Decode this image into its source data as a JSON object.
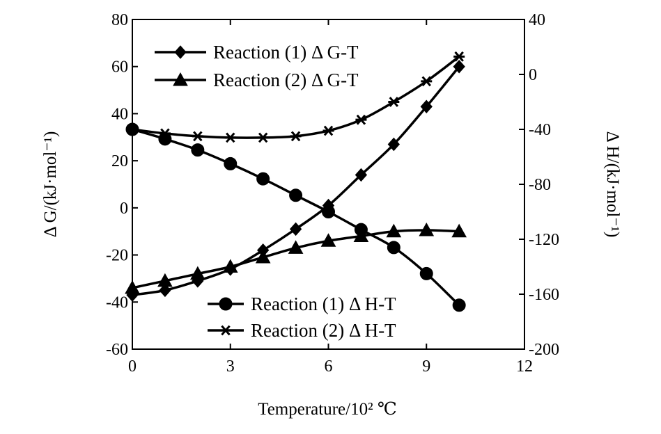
{
  "chart_data": {
    "type": "line",
    "xlabel": "Temperature/10² ℃",
    "ylabel_left": "Δ G/(kJ·mol⁻¹)",
    "ylabel_right": "Δ H/(kJ·mol⁻¹)",
    "xlim": [
      0,
      12
    ],
    "ylim_left": [
      -60,
      80
    ],
    "ylim_right": [
      -200,
      40
    ],
    "xticks": [
      "0",
      "3",
      "6",
      "9",
      "12"
    ],
    "yticks_left": [
      "80",
      "60",
      "40",
      "20",
      "0",
      "-20",
      "-40",
      "-60"
    ],
    "yticks_right": [
      "40",
      "0",
      "-40",
      "-80",
      "-120",
      "-160",
      "-200"
    ],
    "grid": false,
    "legends": [
      {
        "entries": [
          "Reaction (1) Δ G-T",
          "Reaction (2) Δ G-T"
        ],
        "placement": "top-left"
      },
      {
        "entries": [
          "Reaction (1) Δ H-T",
          "Reaction (2) Δ H-T"
        ],
        "placement": "bottom-right"
      }
    ],
    "series": [
      {
        "name": "Reaction (1) Δ G-T",
        "axis": "left",
        "marker": "diamond",
        "x": [
          0,
          1,
          2,
          3,
          4,
          5,
          6,
          7,
          8,
          9,
          10
        ],
        "values": [
          -37,
          -35,
          -31,
          -26,
          -18,
          -9,
          1,
          14,
          27,
          43,
          60
        ]
      },
      {
        "name": "Reaction (2) Δ G-T",
        "axis": "left",
        "marker": "triangle",
        "x": [
          0,
          1,
          2,
          3,
          4,
          5,
          6,
          7,
          8,
          9,
          10
        ],
        "values": [
          -34,
          -31,
          -28,
          -25,
          -21,
          -17,
          -14,
          -12,
          -10,
          -9.5,
          -10
        ]
      },
      {
        "name": "Reaction (1) Δ H-T",
        "axis": "right",
        "marker": "circle",
        "x": [
          0,
          1,
          2,
          3,
          4,
          5,
          6,
          7,
          8,
          9,
          10
        ],
        "values": [
          -40,
          -47,
          -55,
          -65,
          -76,
          -88,
          -100,
          -113,
          -126,
          -145,
          -168
        ]
      },
      {
        "name": "Reaction (2) Δ H-T",
        "axis": "right",
        "marker": "asterisk",
        "x": [
          0,
          1,
          2,
          3,
          4,
          5,
          6,
          7,
          8,
          9,
          10
        ],
        "values": [
          -40,
          -43,
          -45,
          -46,
          -46,
          -45,
          -41,
          -33,
          -20,
          -5,
          13
        ]
      }
    ]
  }
}
